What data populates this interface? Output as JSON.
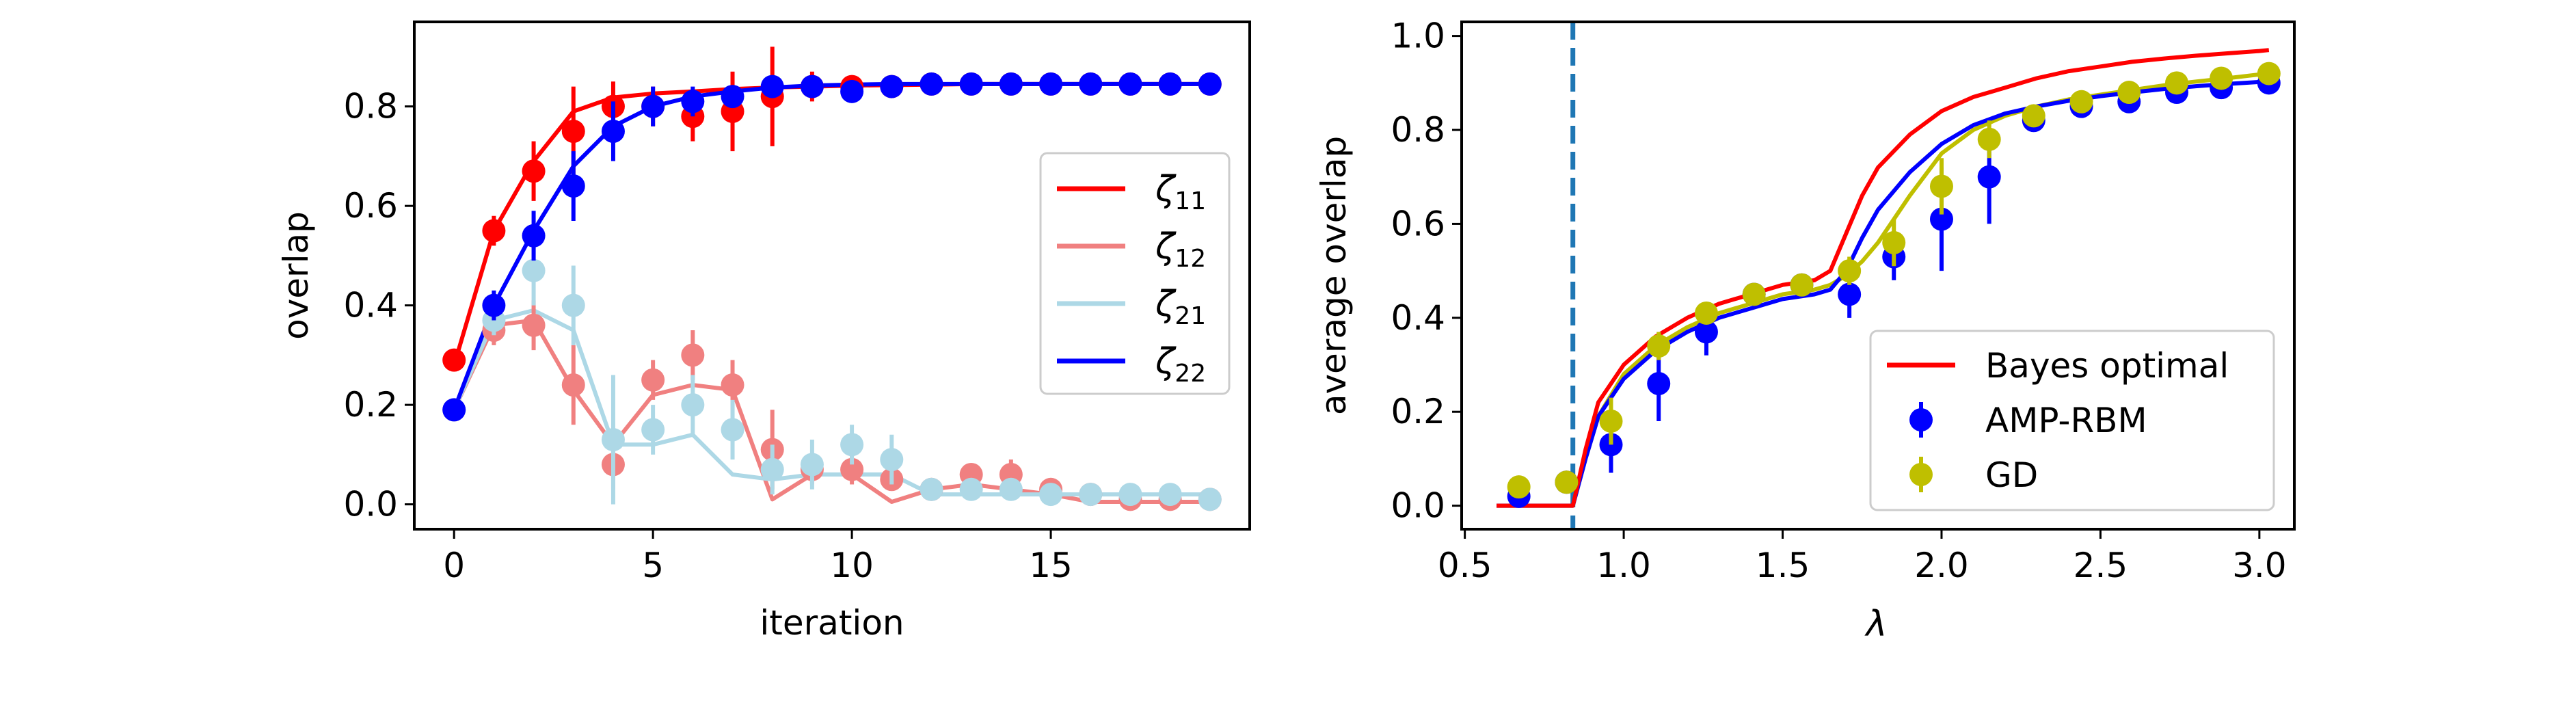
{
  "colors": {
    "red": "#ff0000",
    "lightcoral": "#f08080",
    "lightblue": "#add8e6",
    "blue": "#0000ff",
    "olive": "#bfbf00",
    "dashed": "#1f77b4",
    "bayes": "#ff0000"
  },
  "chart_data": [
    {
      "type": "line",
      "xlabel": "iteration",
      "ylabel": "overlap",
      "xlim": [
        -1,
        20
      ],
      "ylim": [
        -0.05,
        0.97
      ],
      "xticks": [
        "0",
        "5",
        "10",
        "15"
      ],
      "yticks": [
        "0.0",
        "0.2",
        "0.4",
        "0.6",
        "0.8"
      ],
      "legend_position": "center-right",
      "series": [
        {
          "name": "ζ11",
          "color_key": "red",
          "line_y": [
            0.28,
            0.55,
            0.69,
            0.79,
            0.818,
            0.826,
            0.83,
            0.835,
            0.838,
            0.84,
            0.842,
            0.843,
            0.844,
            0.845,
            0.845,
            0.845,
            0.845,
            0.845,
            0.845,
            0.845
          ],
          "x": [
            0,
            1,
            2,
            3,
            4,
            5,
            6,
            7,
            8,
            9,
            10,
            11,
            12,
            13,
            14,
            15,
            16,
            17,
            18,
            19
          ],
          "y": [
            0.29,
            0.55,
            0.67,
            0.75,
            0.8,
            0.8,
            0.78,
            0.79,
            0.82,
            0.84,
            0.84,
            0.84,
            0.845,
            0.845,
            0.845,
            0.845,
            0.845,
            0.845,
            0.845,
            0.845
          ],
          "err": [
            0.02,
            0.03,
            0.06,
            0.09,
            0.05,
            0.04,
            0.05,
            0.08,
            0.1,
            0.03,
            0.02,
            0.02,
            0.01,
            0.01,
            0.01,
            0.01,
            0.01,
            0.01,
            0.01,
            0.01
          ]
        },
        {
          "name": "ζ12",
          "color_key": "lightcoral",
          "line_y": [
            0.19,
            0.36,
            0.37,
            0.23,
            0.12,
            0.22,
            0.24,
            0.23,
            0.01,
            0.06,
            0.06,
            0.005,
            0.03,
            0.04,
            0.03,
            0.02,
            0.005,
            0.005,
            0.005,
            0.005
          ],
          "x": [
            0,
            1,
            2,
            3,
            4,
            5,
            6,
            7,
            8,
            9,
            10,
            11,
            12,
            13,
            14,
            15,
            16,
            17,
            18,
            19
          ],
          "y": [
            0.19,
            0.35,
            0.36,
            0.24,
            0.08,
            0.25,
            0.3,
            0.24,
            0.11,
            0.07,
            0.07,
            0.05,
            0.03,
            0.06,
            0.06,
            0.03,
            0.02,
            0.01,
            0.01,
            0.01
          ],
          "err": [
            0.01,
            0.03,
            0.05,
            0.08,
            0.05,
            0.04,
            0.05,
            0.05,
            0.08,
            0.03,
            0.03,
            0.02,
            0.02,
            0.02,
            0.03,
            0.02,
            0.01,
            0.01,
            0.01,
            0.01
          ]
        },
        {
          "name": "ζ21",
          "color_key": "lightblue",
          "line_y": [
            0.19,
            0.37,
            0.39,
            0.35,
            0.12,
            0.12,
            0.14,
            0.06,
            0.05,
            0.06,
            0.06,
            0.06,
            0.02,
            0.02,
            0.02,
            0.02,
            0.02,
            0.02,
            0.02,
            0.02
          ],
          "x": [
            0,
            1,
            2,
            3,
            4,
            5,
            6,
            7,
            8,
            9,
            10,
            11,
            12,
            13,
            14,
            15,
            16,
            17,
            18,
            19
          ],
          "y": [
            0.19,
            0.37,
            0.47,
            0.4,
            0.13,
            0.15,
            0.2,
            0.15,
            0.07,
            0.08,
            0.12,
            0.09,
            0.03,
            0.03,
            0.03,
            0.02,
            0.02,
            0.02,
            0.02,
            0.01
          ],
          "err": [
            0.01,
            0.03,
            0.07,
            0.08,
            0.13,
            0.05,
            0.06,
            0.06,
            0.05,
            0.05,
            0.04,
            0.05,
            0.02,
            0.02,
            0.02,
            0.01,
            0.01,
            0.01,
            0.01,
            0.01
          ]
        },
        {
          "name": "ζ22",
          "color_key": "blue",
          "line_y": [
            0.19,
            0.4,
            0.55,
            0.68,
            0.76,
            0.8,
            0.82,
            0.83,
            0.838,
            0.842,
            0.844,
            0.845,
            0.845,
            0.845,
            0.845,
            0.845,
            0.845,
            0.845,
            0.845,
            0.845
          ],
          "x": [
            0,
            1,
            2,
            3,
            4,
            5,
            6,
            7,
            8,
            9,
            10,
            11,
            12,
            13,
            14,
            15,
            16,
            17,
            18,
            19
          ],
          "y": [
            0.19,
            0.4,
            0.54,
            0.64,
            0.75,
            0.8,
            0.81,
            0.82,
            0.84,
            0.84,
            0.83,
            0.84,
            0.845,
            0.845,
            0.845,
            0.845,
            0.845,
            0.845,
            0.845,
            0.845
          ],
          "err": [
            0.01,
            0.03,
            0.05,
            0.07,
            0.06,
            0.04,
            0.03,
            0.02,
            0.02,
            0.02,
            0.02,
            0.01,
            0.01,
            0.01,
            0.01,
            0.01,
            0.01,
            0.01,
            0.01,
            0.01
          ]
        }
      ]
    },
    {
      "type": "scatter",
      "xlabel": "λ",
      "ylabel": "average overlap",
      "xlim": [
        0.49,
        3.11
      ],
      "ylim": [
        -0.05,
        1.03
      ],
      "xticks": [
        "0.5",
        "1.0",
        "1.5",
        "2.0",
        "2.5",
        "3.0"
      ],
      "yticks": [
        "0.0",
        "0.2",
        "0.4",
        "0.6",
        "0.8",
        "1.0"
      ],
      "vline_x": 0.84,
      "legend_position": "bottom-right",
      "legend": [
        "Bayes optimal",
        "AMP-RBM",
        "GD"
      ],
      "bayes_optimal": {
        "name": "Bayes optimal",
        "x": [
          0.6,
          0.84,
          0.88,
          0.92,
          1.0,
          1.1,
          1.2,
          1.3,
          1.4,
          1.5,
          1.6,
          1.65,
          1.7,
          1.75,
          1.8,
          1.9,
          2.0,
          2.1,
          2.2,
          2.3,
          2.4,
          2.5,
          2.6,
          2.7,
          2.8,
          2.9,
          3.0,
          3.03
        ],
        "y": [
          0.0,
          0.0,
          0.12,
          0.22,
          0.3,
          0.36,
          0.4,
          0.43,
          0.45,
          0.47,
          0.48,
          0.5,
          0.58,
          0.66,
          0.72,
          0.79,
          0.84,
          0.87,
          0.89,
          0.91,
          0.925,
          0.935,
          0.945,
          0.952,
          0.958,
          0.963,
          0.968,
          0.97
        ]
      },
      "amp_curve": {
        "x": [
          0.6,
          0.84,
          0.88,
          0.92,
          1.0,
          1.1,
          1.2,
          1.3,
          1.4,
          1.5,
          1.6,
          1.65,
          1.7,
          1.75,
          1.8,
          1.9,
          2.0,
          2.1,
          2.2,
          2.3,
          2.4,
          2.5,
          2.6,
          2.7,
          2.8,
          2.9,
          3.0,
          3.03
        ],
        "y": [
          0.0,
          0.0,
          0.1,
          0.19,
          0.27,
          0.33,
          0.37,
          0.4,
          0.42,
          0.44,
          0.45,
          0.46,
          0.5,
          0.57,
          0.63,
          0.71,
          0.77,
          0.81,
          0.835,
          0.85,
          0.862,
          0.872,
          0.88,
          0.887,
          0.893,
          0.898,
          0.902,
          0.904
        ]
      },
      "gd_curve": {
        "x": [
          0.6,
          0.84,
          0.88,
          0.92,
          1.0,
          1.1,
          1.2,
          1.3,
          1.4,
          1.5,
          1.6,
          1.65,
          1.7,
          1.75,
          1.8,
          1.9,
          2.0,
          2.1,
          2.2,
          2.3,
          2.4,
          2.5,
          2.6,
          2.7,
          2.8,
          2.9,
          3.0,
          3.03
        ],
        "y": [
          0.0,
          0.0,
          0.1,
          0.19,
          0.28,
          0.34,
          0.38,
          0.41,
          0.43,
          0.45,
          0.46,
          0.47,
          0.49,
          0.52,
          0.56,
          0.66,
          0.75,
          0.8,
          0.83,
          0.85,
          0.865,
          0.875,
          0.885,
          0.895,
          0.903,
          0.91,
          0.918,
          0.92
        ]
      },
      "series": [
        {
          "name": "AMP-RBM",
          "color_key": "blue",
          "x": [
            0.67,
            0.82,
            0.96,
            1.11,
            1.26,
            1.41,
            1.56,
            1.71,
            1.85,
            2.0,
            2.15,
            2.29,
            2.44,
            2.59,
            2.74,
            2.88,
            3.03
          ],
          "y": [
            0.02,
            0.05,
            0.13,
            0.26,
            0.37,
            0.45,
            0.47,
            0.45,
            0.53,
            0.61,
            0.7,
            0.82,
            0.85,
            0.86,
            0.88,
            0.89,
            0.9
          ],
          "err": [
            0.01,
            0.02,
            0.06,
            0.08,
            0.05,
            0.02,
            0.02,
            0.05,
            0.05,
            0.11,
            0.1,
            0.02,
            0.02,
            0.02,
            0.01,
            0.01,
            0.01
          ]
        },
        {
          "name": "GD",
          "color_key": "olive",
          "x": [
            0.67,
            0.82,
            0.96,
            1.11,
            1.26,
            1.41,
            1.56,
            1.71,
            1.85,
            2.0,
            2.15,
            2.29,
            2.44,
            2.59,
            2.74,
            2.88,
            3.03
          ],
          "y": [
            0.04,
            0.05,
            0.18,
            0.34,
            0.41,
            0.45,
            0.47,
            0.5,
            0.56,
            0.68,
            0.78,
            0.83,
            0.86,
            0.88,
            0.9,
            0.91,
            0.92
          ],
          "err": [
            0.01,
            0.02,
            0.05,
            0.03,
            0.02,
            0.01,
            0.01,
            0.03,
            0.05,
            0.06,
            0.04,
            0.02,
            0.01,
            0.01,
            0.01,
            0.01,
            0.01
          ]
        }
      ]
    }
  ]
}
